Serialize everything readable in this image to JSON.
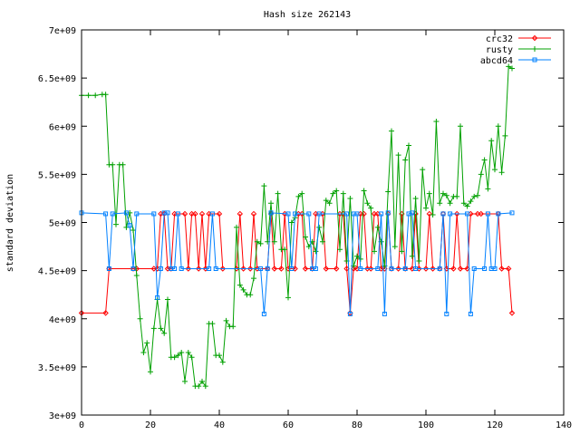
{
  "chart_data": {
    "type": "line",
    "title": "Hash size 262143",
    "xlabel": "",
    "ylabel": "standard deviation",
    "xlim": [
      0,
      140
    ],
    "ylim": [
      3000000000,
      7000000000
    ],
    "x_ticks": [
      "0",
      "20",
      "40",
      "60",
      "80",
      "100",
      "120",
      "140"
    ],
    "y_ticks": [
      "3e+09",
      "3.5e+09",
      "4e+09",
      "4.5e+09",
      "5e+09",
      "5.5e+09",
      "6e+09",
      "6.5e+09",
      "7e+09"
    ],
    "legend_position": "top-right",
    "series": [
      {
        "name": "crc32",
        "color": "#ff0000",
        "marker": "diamond",
        "points": [
          [
            0,
            4060000000.0
          ],
          [
            7,
            4060000000.0
          ],
          [
            8,
            4520000000.0
          ],
          [
            15,
            4520000000.0
          ],
          [
            16,
            4520000000.0
          ],
          [
            21,
            4520000000.0
          ],
          [
            22,
            4520000000.0
          ],
          [
            23,
            5090000000.0
          ],
          [
            24,
            5090000000.0
          ],
          [
            25,
            4520000000.0
          ],
          [
            26,
            4520000000.0
          ],
          [
            27,
            5090000000.0
          ],
          [
            30,
            5090000000.0
          ],
          [
            31,
            4520000000.0
          ],
          [
            32,
            5090000000.0
          ],
          [
            33,
            5090000000.0
          ],
          [
            34,
            4520000000.0
          ],
          [
            35,
            5090000000.0
          ],
          [
            36,
            4520000000.0
          ],
          [
            37,
            5090000000.0
          ],
          [
            40,
            5090000000.0
          ],
          [
            41,
            4520000000.0
          ],
          [
            45,
            4520000000.0
          ],
          [
            46,
            5090000000.0
          ],
          [
            47,
            4520000000.0
          ],
          [
            49,
            4520000000.0
          ],
          [
            50,
            5090000000.0
          ],
          [
            51,
            4520000000.0
          ],
          [
            54,
            4520000000.0
          ],
          [
            55,
            5090000000.0
          ],
          [
            56,
            4520000000.0
          ],
          [
            58,
            4520000000.0
          ],
          [
            59,
            5090000000.0
          ],
          [
            60,
            4520000000.0
          ],
          [
            62,
            4520000000.0
          ],
          [
            63,
            5090000000.0
          ],
          [
            64,
            5090000000.0
          ],
          [
            65,
            4520000000.0
          ],
          [
            67,
            4520000000.0
          ],
          [
            68,
            5090000000.0
          ],
          [
            70,
            5090000000.0
          ],
          [
            71,
            4520000000.0
          ],
          [
            74,
            4520000000.0
          ],
          [
            75,
            5090000000.0
          ],
          [
            76,
            5090000000.0
          ],
          [
            77,
            4520000000.0
          ],
          [
            78,
            4060000000.0
          ],
          [
            79,
            4520000000.0
          ],
          [
            80,
            4520000000.0
          ],
          [
            81,
            5090000000.0
          ],
          [
            82,
            5090000000.0
          ],
          [
            83,
            4520000000.0
          ],
          [
            84,
            4520000000.0
          ],
          [
            85,
            5090000000.0
          ],
          [
            86,
            5090000000.0
          ],
          [
            87,
            4520000000.0
          ],
          [
            88,
            4520000000.0
          ],
          [
            89,
            5090000000.0
          ],
          [
            90,
            4520000000.0
          ],
          [
            92,
            4520000000.0
          ],
          [
            93,
            5090000000.0
          ],
          [
            94,
            4520000000.0
          ],
          [
            96,
            4520000000.0
          ],
          [
            97,
            5090000000.0
          ],
          [
            98,
            4520000000.0
          ],
          [
            100,
            4520000000.0
          ],
          [
            101,
            5090000000.0
          ],
          [
            102,
            4520000000.0
          ],
          [
            104,
            4520000000.0
          ],
          [
            105,
            5090000000.0
          ],
          [
            106,
            4520000000.0
          ],
          [
            108,
            4520000000.0
          ],
          [
            109,
            5090000000.0
          ],
          [
            110,
            4520000000.0
          ],
          [
            112,
            4520000000.0
          ],
          [
            113,
            5090000000.0
          ],
          [
            115,
            5090000000.0
          ],
          [
            116,
            5090000000.0
          ],
          [
            121,
            5090000000.0
          ],
          [
            122,
            4520000000.0
          ],
          [
            124,
            4520000000.0
          ],
          [
            125,
            4060000000.0
          ]
        ]
      },
      {
        "name": "rusty",
        "color": "#00a000",
        "marker": "plus",
        "points": [
          [
            0,
            6320000000.0
          ],
          [
            2,
            6320000000.0
          ],
          [
            4,
            6320000000.0
          ],
          [
            6,
            6330000000.0
          ],
          [
            7,
            6330000000.0
          ],
          [
            8,
            5600000000.0
          ],
          [
            9,
            5600000000.0
          ],
          [
            10,
            4980000000.0
          ],
          [
            11,
            5600000000.0
          ],
          [
            12,
            5600000000.0
          ],
          [
            13,
            4950000000.0
          ],
          [
            14,
            5100000000.0
          ],
          [
            15,
            4920000000.0
          ],
          [
            16,
            4450000000.0
          ],
          [
            17,
            4000000000.0
          ],
          [
            18,
            3650000000.0
          ],
          [
            19,
            3750000000.0
          ],
          [
            20,
            3450000000.0
          ],
          [
            21,
            3900000000.0
          ],
          [
            22,
            4200000000.0
          ],
          [
            23,
            3900000000.0
          ],
          [
            24,
            3850000000.0
          ],
          [
            25,
            4200000000.0
          ],
          [
            26,
            3600000000.0
          ],
          [
            27,
            3600000000.0
          ],
          [
            28,
            3620000000.0
          ],
          [
            29,
            3650000000.0
          ],
          [
            30,
            3350000000.0
          ],
          [
            31,
            3650000000.0
          ],
          [
            32,
            3600000000.0
          ],
          [
            33,
            3300000000.0
          ],
          [
            34,
            3300000000.0
          ],
          [
            35,
            3350000000.0
          ],
          [
            36,
            3300000000.0
          ],
          [
            37,
            3950000000.0
          ],
          [
            38,
            3950000000.0
          ],
          [
            39,
            3620000000.0
          ],
          [
            40,
            3620000000.0
          ],
          [
            41,
            3550000000.0
          ],
          [
            42,
            3980000000.0
          ],
          [
            43,
            3920000000.0
          ],
          [
            44,
            3920000000.0
          ],
          [
            45,
            4950000000.0
          ],
          [
            46,
            4350000000.0
          ],
          [
            47,
            4300000000.0
          ],
          [
            48,
            4250000000.0
          ],
          [
            49,
            4250000000.0
          ],
          [
            50,
            4420000000.0
          ],
          [
            51,
            4800000000.0
          ],
          [
            52,
            4780000000.0
          ],
          [
            53,
            5380000000.0
          ],
          [
            54,
            4800000000.0
          ],
          [
            55,
            5200000000.0
          ],
          [
            56,
            4800000000.0
          ],
          [
            57,
            5300000000.0
          ],
          [
            58,
            4720000000.0
          ],
          [
            59,
            4720000000.0
          ],
          [
            60,
            4220000000.0
          ],
          [
            61,
            5000000000.0
          ],
          [
            62,
            5050000000.0
          ],
          [
            63,
            5270000000.0
          ],
          [
            64,
            5300000000.0
          ],
          [
            65,
            4850000000.0
          ],
          [
            66,
            4750000000.0
          ],
          [
            67,
            4800000000.0
          ],
          [
            68,
            4700000000.0
          ],
          [
            69,
            4950000000.0
          ],
          [
            70,
            4800000000.0
          ],
          [
            71,
            5230000000.0
          ],
          [
            72,
            5200000000.0
          ],
          [
            73,
            5300000000.0
          ],
          [
            74,
            5330000000.0
          ],
          [
            75,
            4720000000.0
          ],
          [
            76,
            5300000000.0
          ],
          [
            77,
            4600000000.0
          ],
          [
            78,
            5250000000.0
          ],
          [
            79,
            4550000000.0
          ],
          [
            80,
            4650000000.0
          ],
          [
            81,
            4620000000.0
          ],
          [
            82,
            5330000000.0
          ],
          [
            83,
            5200000000.0
          ],
          [
            84,
            5150000000.0
          ],
          [
            85,
            4700000000.0
          ],
          [
            86,
            4950000000.0
          ],
          [
            87,
            4800000000.0
          ],
          [
            88,
            4550000000.0
          ],
          [
            89,
            5320000000.0
          ],
          [
            90,
            5950000000.0
          ],
          [
            91,
            4750000000.0
          ],
          [
            92,
            5700000000.0
          ],
          [
            93,
            4700000000.0
          ],
          [
            94,
            5650000000.0
          ],
          [
            95,
            5800000000.0
          ],
          [
            96,
            4650000000.0
          ],
          [
            97,
            5250000000.0
          ],
          [
            98,
            4600000000.0
          ],
          [
            99,
            5550000000.0
          ],
          [
            100,
            5150000000.0
          ],
          [
            101,
            5300000000.0
          ],
          [
            102,
            5080000000.0
          ],
          [
            103,
            6050000000.0
          ],
          [
            104,
            5200000000.0
          ],
          [
            105,
            5300000000.0
          ],
          [
            106,
            5280000000.0
          ],
          [
            107,
            5200000000.0
          ],
          [
            108,
            5270000000.0
          ],
          [
            109,
            5270000000.0
          ],
          [
            110,
            6000000000.0
          ],
          [
            111,
            5200000000.0
          ],
          [
            112,
            5170000000.0
          ],
          [
            113,
            5220000000.0
          ],
          [
            114,
            5270000000.0
          ],
          [
            115,
            5280000000.0
          ],
          [
            116,
            5500000000.0
          ],
          [
            117,
            5650000000.0
          ],
          [
            118,
            5350000000.0
          ],
          [
            119,
            5850000000.0
          ],
          [
            120,
            5550000000.0
          ],
          [
            121,
            6000000000.0
          ],
          [
            122,
            5520000000.0
          ],
          [
            123,
            5900000000.0
          ],
          [
            124,
            6620000000.0
          ],
          [
            125,
            6600000000.0
          ]
        ]
      },
      {
        "name": "abcd64",
        "color": "#0080ff",
        "marker": "square",
        "points": [
          [
            0,
            5100000000.0
          ],
          [
            7,
            5090000000.0
          ],
          [
            8,
            4520000000.0
          ],
          [
            9,
            5090000000.0
          ],
          [
            13,
            5100000000.0
          ],
          [
            14,
            4970000000.0
          ],
          [
            15,
            4520000000.0
          ],
          [
            16,
            5090000000.0
          ],
          [
            21,
            5090000000.0
          ],
          [
            22,
            4220000000.0
          ],
          [
            23,
            4520000000.0
          ],
          [
            24,
            5100000000.0
          ],
          [
            25,
            5100000000.0
          ],
          [
            26,
            4520000000.0
          ],
          [
            27,
            4520000000.0
          ],
          [
            28,
            5090000000.0
          ],
          [
            29,
            4520000000.0
          ],
          [
            37,
            4520000000.0
          ],
          [
            38,
            5090000000.0
          ],
          [
            39,
            4520000000.0
          ],
          [
            52,
            4520000000.0
          ],
          [
            53,
            4050000000.0
          ],
          [
            54,
            4520000000.0
          ],
          [
            55,
            5100000000.0
          ],
          [
            60,
            5090000000.0
          ],
          [
            61,
            4520000000.0
          ],
          [
            62,
            5090000000.0
          ],
          [
            66,
            5090000000.0
          ],
          [
            67,
            4520000000.0
          ],
          [
            68,
            4520000000.0
          ],
          [
            69,
            5090000000.0
          ],
          [
            77,
            5090000000.0
          ],
          [
            78,
            4050000000.0
          ],
          [
            79,
            5090000000.0
          ],
          [
            80,
            5090000000.0
          ],
          [
            81,
            4520000000.0
          ],
          [
            86,
            4520000000.0
          ],
          [
            87,
            5090000000.0
          ],
          [
            88,
            4050000000.0
          ],
          [
            89,
            5100000000.0
          ],
          [
            90,
            4520000000.0
          ],
          [
            94,
            4520000000.0
          ],
          [
            95,
            5090000000.0
          ],
          [
            96,
            5100000000.0
          ],
          [
            97,
            4520000000.0
          ],
          [
            104,
            4520000000.0
          ],
          [
            105,
            5090000000.0
          ],
          [
            106,
            4050000000.0
          ],
          [
            107,
            5090000000.0
          ],
          [
            112,
            5090000000.0
          ],
          [
            113,
            4050000000.0
          ],
          [
            114,
            4520000000.0
          ],
          [
            117,
            4520000000.0
          ],
          [
            118,
            5090000000.0
          ],
          [
            119,
            4520000000.0
          ],
          [
            120,
            4520000000.0
          ],
          [
            121,
            5090000000.0
          ],
          [
            125,
            5100000000.0
          ]
        ]
      }
    ]
  }
}
